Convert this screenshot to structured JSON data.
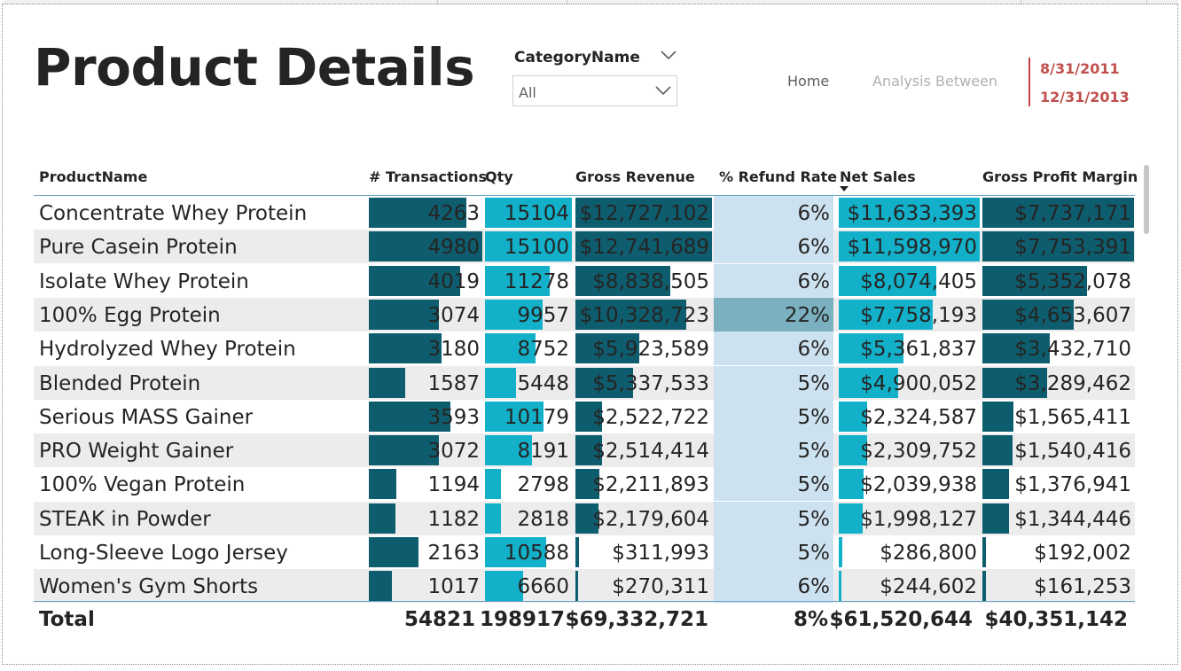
{
  "header": {
    "title": "Product Details"
  },
  "slicer": {
    "title": "CategoryName",
    "value": "All"
  },
  "nav": {
    "home": "Home",
    "analysis": "Analysis Between"
  },
  "date_range": {
    "start": "8/31/2011",
    "end": "12/31/2013"
  },
  "colors": {
    "dark_teal_bar": "#0e5d6e",
    "light_teal_bar": "#12b0c9",
    "refund_bg": "#cde2f0",
    "refund_highlight": "#7ab0bf",
    "date_red": "#c0504d"
  },
  "icons": {
    "slicer_header": "chevron-down-icon",
    "slicer_dropdown": "chevron-down-icon",
    "sort": "sort-descending-icon"
  },
  "table": {
    "columns": [
      "ProductName",
      "# Transactions",
      "Qty",
      "Gross Revenue",
      "% Refund Rate",
      "Net Sales",
      "Gross Profit Margin"
    ],
    "sorted_column": "Net Sales",
    "rows": [
      {
        "name": "Concentrate Whey Protein",
        "transactions": "4263",
        "qty": "15104",
        "gross_revenue": "$12,727,102",
        "refund_rate": "6%",
        "net_sales": "$11,633,393",
        "gpm": "$7,737,171"
      },
      {
        "name": "Pure Casein Protein",
        "transactions": "4980",
        "qty": "15100",
        "gross_revenue": "$12,741,689",
        "refund_rate": "6%",
        "net_sales": "$11,598,970",
        "gpm": "$7,753,391"
      },
      {
        "name": "Isolate Whey Protein",
        "transactions": "4019",
        "qty": "11278",
        "gross_revenue": "$8,838,505",
        "refund_rate": "6%",
        "net_sales": "$8,074,405",
        "gpm": "$5,352,078"
      },
      {
        "name": "100% Egg Protein",
        "transactions": "3074",
        "qty": "9957",
        "gross_revenue": "$10,328,723",
        "refund_rate": "22%",
        "net_sales": "$7,758,193",
        "gpm": "$4,653,607"
      },
      {
        "name": "Hydrolyzed Whey Protein",
        "transactions": "3180",
        "qty": "8752",
        "gross_revenue": "$5,923,589",
        "refund_rate": "6%",
        "net_sales": "$5,361,837",
        "gpm": "$3,432,710"
      },
      {
        "name": "Blended Protein",
        "transactions": "1587",
        "qty": "5448",
        "gross_revenue": "$5,337,533",
        "refund_rate": "5%",
        "net_sales": "$4,900,052",
        "gpm": "$3,289,462"
      },
      {
        "name": "Serious MASS Gainer",
        "transactions": "3593",
        "qty": "10179",
        "gross_revenue": "$2,522,722",
        "refund_rate": "5%",
        "net_sales": "$2,324,587",
        "gpm": "$1,565,411"
      },
      {
        "name": "PRO Weight Gainer",
        "transactions": "3072",
        "qty": "8191",
        "gross_revenue": "$2,514,414",
        "refund_rate": "5%",
        "net_sales": "$2,309,752",
        "gpm": "$1,540,416"
      },
      {
        "name": "100% Vegan Protein",
        "transactions": "1194",
        "qty": "2798",
        "gross_revenue": "$2,211,893",
        "refund_rate": "5%",
        "net_sales": "$2,039,938",
        "gpm": "$1,376,941"
      },
      {
        "name": "STEAK in Powder",
        "transactions": "1182",
        "qty": "2818",
        "gross_revenue": "$2,179,604",
        "refund_rate": "5%",
        "net_sales": "$1,998,127",
        "gpm": "$1,344,446"
      },
      {
        "name": "Long-Sleeve Logo Jersey",
        "transactions": "2163",
        "qty": "10588",
        "gross_revenue": "$311,993",
        "refund_rate": "5%",
        "net_sales": "$286,800",
        "gpm": "$192,002"
      },
      {
        "name": "Women's Gym Shorts",
        "transactions": "1017",
        "qty": "6660",
        "gross_revenue": "$270,311",
        "refund_rate": "6%",
        "net_sales": "$244,602",
        "gpm": "$161,253"
      }
    ],
    "total": {
      "label": "Total",
      "transactions": "54821",
      "qty": "198917",
      "gross_revenue": "$69,332,721",
      "refund_rate": "8%",
      "net_sales": "$61,520,644",
      "gpm": "$40,351,142"
    }
  }
}
